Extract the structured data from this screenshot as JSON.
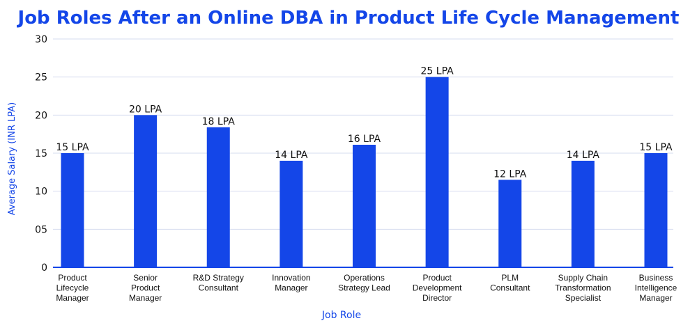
{
  "chart_data": {
    "type": "bar",
    "title": "Job Roles After an Online DBA in Product Life Cycle Management",
    "xlabel": "Job Role",
    "ylabel": "Average Salary (INR LPA)",
    "ylim": [
      0,
      30
    ],
    "yticks": [
      0,
      5,
      10,
      15,
      20,
      25,
      30
    ],
    "ytick_labels": [
      "0",
      "05",
      "10",
      "15",
      "20",
      "25",
      "30"
    ],
    "grid": true,
    "categories": [
      [
        "Product",
        "Lifecycle",
        "Manager"
      ],
      [
        "Senior",
        "Product",
        "Manager"
      ],
      [
        "R&D Strategy",
        "Consultant"
      ],
      [
        "Innovation",
        "Manager"
      ],
      [
        "Operations",
        "Strategy Lead"
      ],
      [
        "Product",
        "Development",
        "Director"
      ],
      [
        "PLM",
        "Consultant"
      ],
      [
        "Supply Chain",
        "Transformation",
        "Specialist"
      ],
      [
        "Business",
        "Intelligence",
        "Manager"
      ]
    ],
    "values": [
      15,
      20,
      18.4,
      14,
      16.1,
      25,
      11.5,
      14,
      15
    ],
    "value_labels": [
      "15 LPA",
      "20 LPA",
      "18 LPA",
      "14 LPA",
      "16 LPA",
      "25 LPA",
      "12 LPA",
      "14 LPA",
      "15 LPA"
    ],
    "colors": {
      "bar": "#1446e8",
      "title": "#1446e8",
      "axis_label": "#1446e8",
      "grid": "#d6dcef",
      "text": "#111111"
    }
  }
}
